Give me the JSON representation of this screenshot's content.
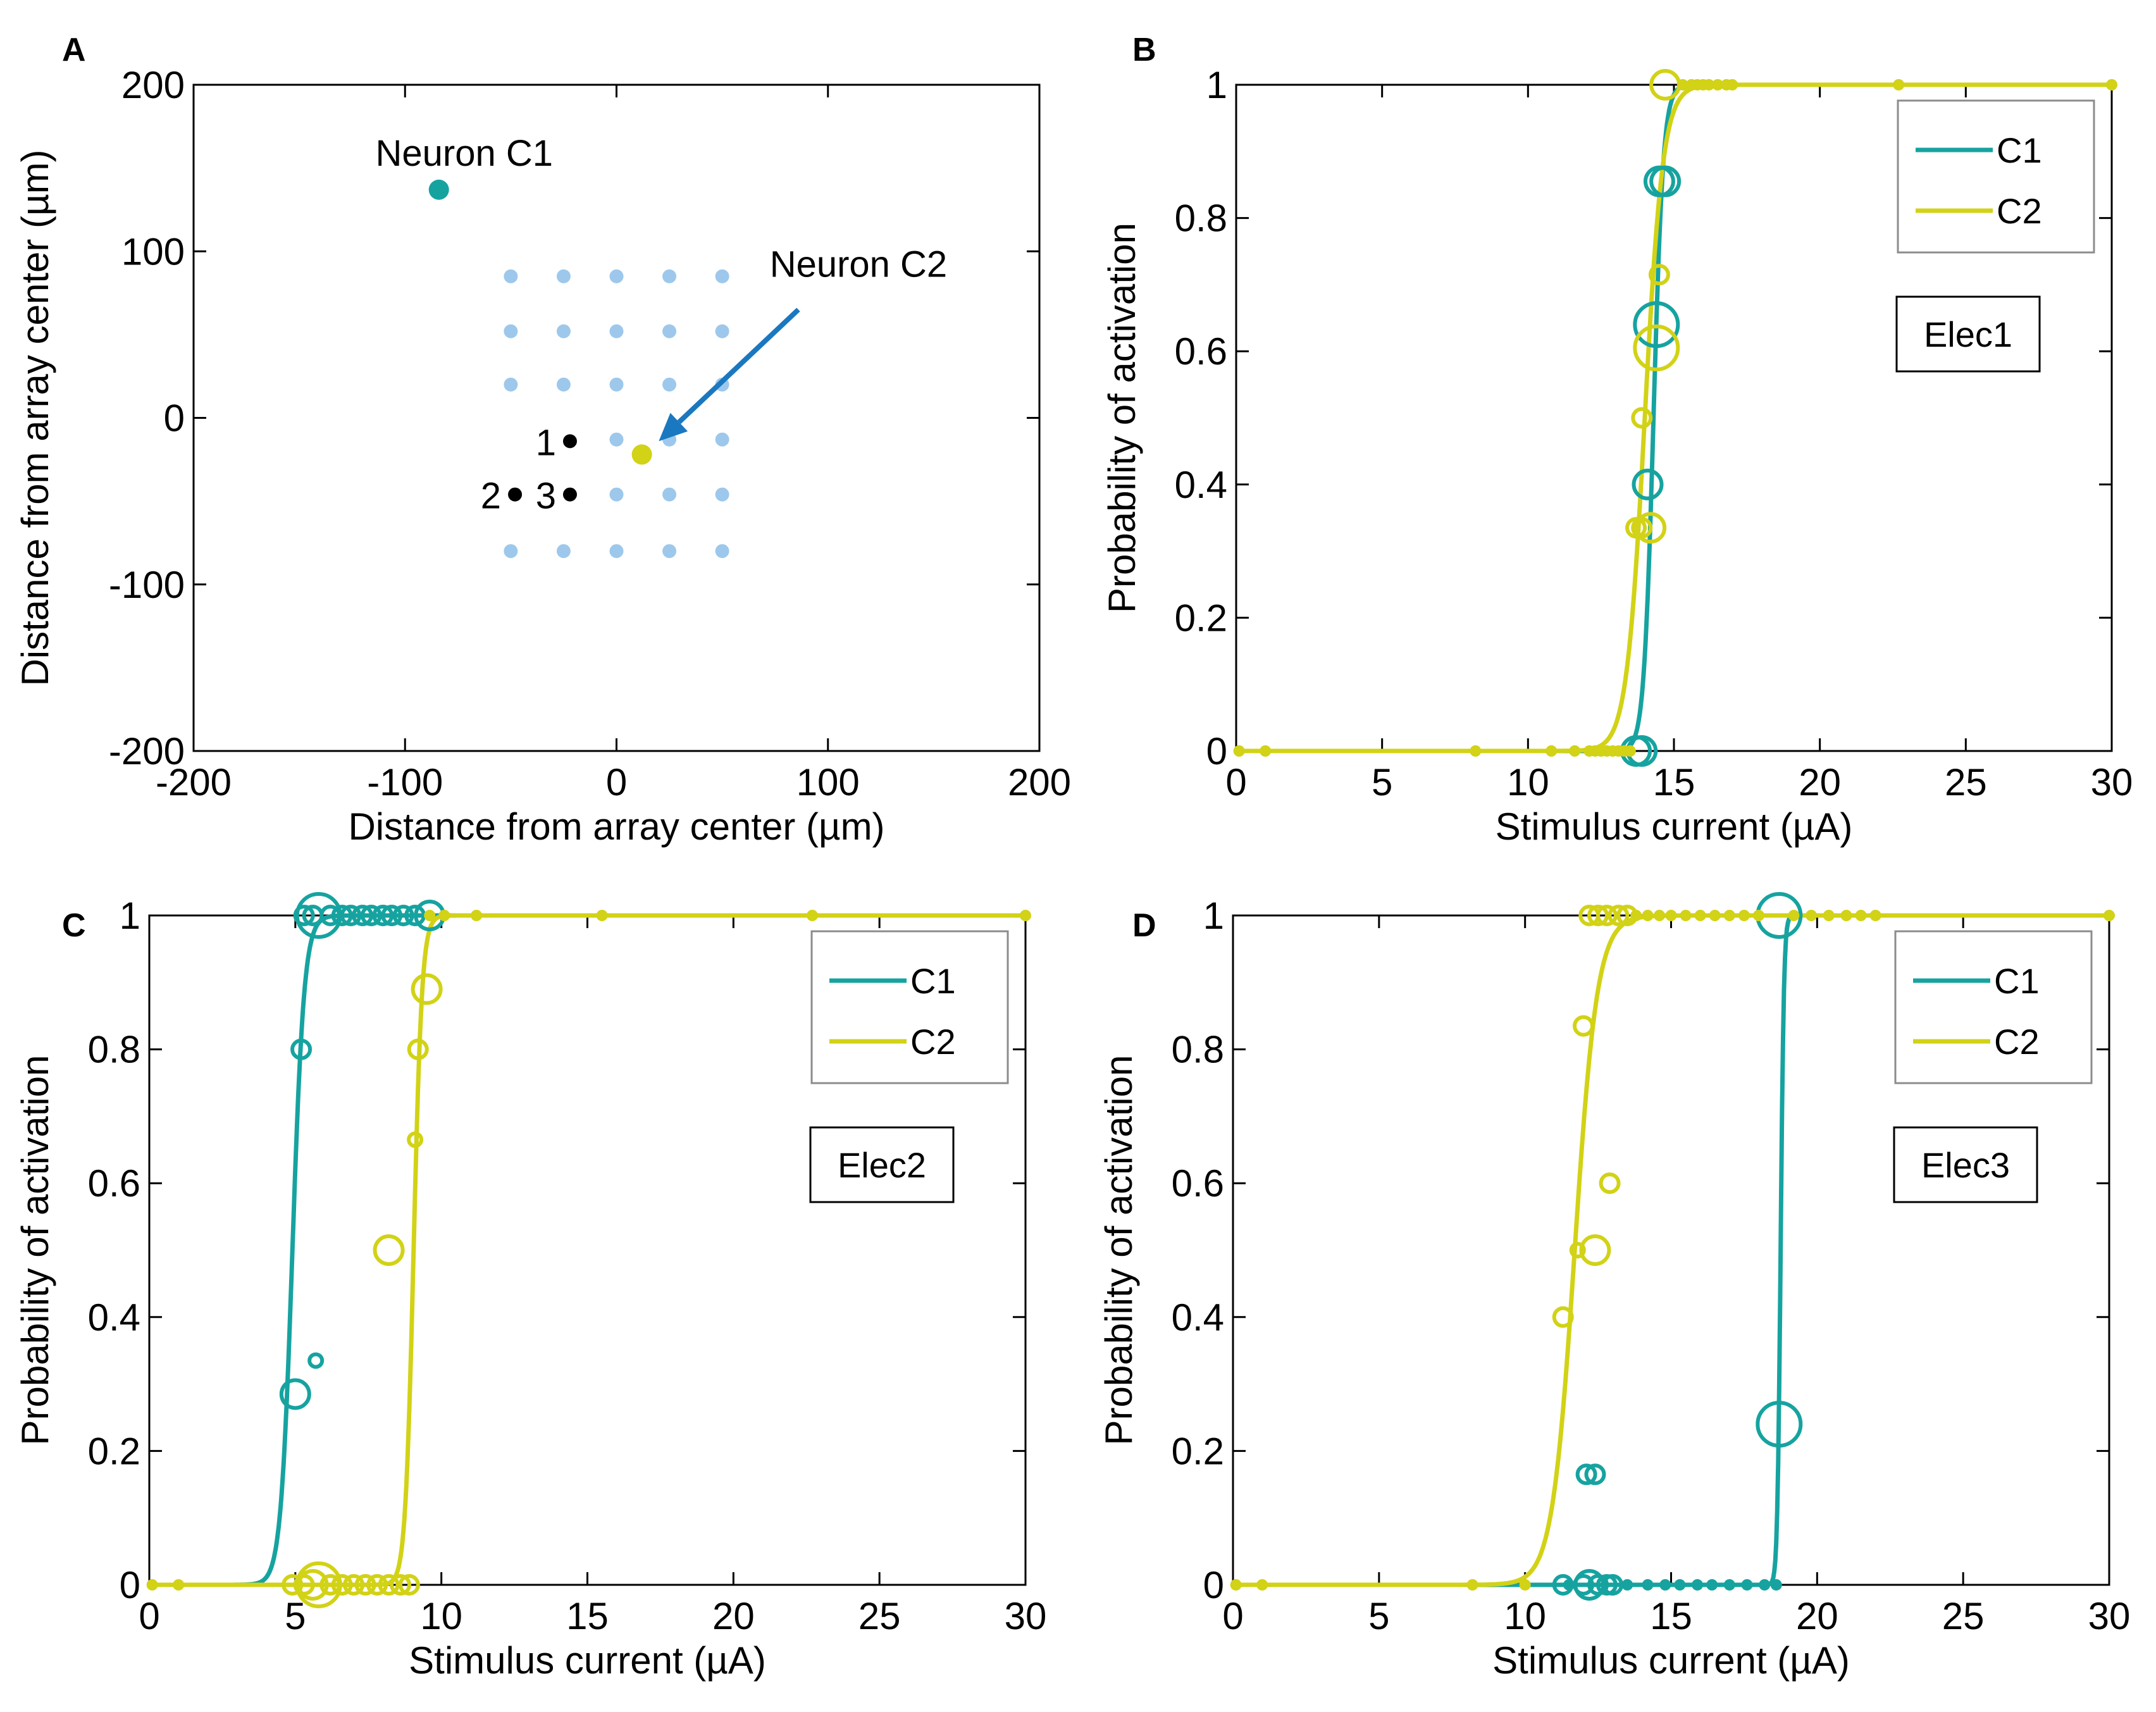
{
  "colors": {
    "C1": "#16a3a0",
    "C2": "#d2d216",
    "grid_dot": "#9dc8ec",
    "arrow": "#1a78c0",
    "black": "#000000"
  },
  "chart_data": [
    {
      "type": "scatter",
      "panel": "A",
      "xlabel": "Distance from array center (µm)",
      "ylabel": "Distance from array center (µm)",
      "xlim": [
        -200,
        200
      ],
      "ylim": [
        -200,
        200
      ],
      "xticks": [
        -200,
        -100,
        0,
        100,
        200
      ],
      "yticks": [
        -200,
        -100,
        0,
        100,
        200
      ],
      "xtick_labels": [
        "-200",
        "-100",
        "0",
        "100",
        "200"
      ],
      "ytick_labels": [
        "-200",
        "-100",
        "0",
        "100",
        "200"
      ],
      "electrode_grid": {
        "xs": [
          -50,
          -25,
          0,
          25,
          50
        ],
        "ys": [
          85,
          52,
          20,
          -13,
          -46,
          -80
        ]
      },
      "electrodes_used": [
        {
          "label": "1",
          "x": -22,
          "y": -14
        },
        {
          "label": "2",
          "x": -48,
          "y": -46
        },
        {
          "label": "3",
          "x": -22,
          "y": -46
        }
      ],
      "neurons": [
        {
          "name": "Neuron C1",
          "label": "Neuron C1",
          "x": -84,
          "y": 137,
          "series": "C1"
        },
        {
          "name": "Neuron C2",
          "label": "Neuron C2",
          "x": 12,
          "y": -22,
          "series": "C2"
        }
      ],
      "arrow": {
        "from": [
          86,
          65
        ],
        "to": [
          20,
          -14
        ]
      }
    },
    {
      "type": "line",
      "panel": "B",
      "xlabel": "Stimulus current (µA)",
      "ylabel": "Probability of activation",
      "xlim": [
        0,
        30
      ],
      "ylim": [
        0,
        1
      ],
      "xticks": [
        0,
        5,
        10,
        15,
        20,
        25,
        30
      ],
      "yticks": [
        0,
        0.2,
        0.4,
        0.6,
        0.8,
        1
      ],
      "xtick_labels": [
        "0",
        "5",
        "10",
        "15",
        "20",
        "25",
        "30"
      ],
      "ytick_labels": [
        "0",
        "0.2",
        "0.4",
        "0.6",
        "0.8",
        "1"
      ],
      "legend": [
        "C1",
        "C2"
      ],
      "legend_position": "top-right",
      "note": "Elec1",
      "series": [
        {
          "name": "C1",
          "fit": {
            "threshold": 14.3,
            "slope": 6.0
          },
          "points": [
            {
              "x": 13.7,
              "y": 0,
              "size": "medium"
            },
            {
              "x": 13.9,
              "y": 0,
              "size": "medium"
            },
            {
              "x": 14.1,
              "y": 0.4,
              "size": "medium"
            },
            {
              "x": 14.4,
              "y": 0.64,
              "size": "large"
            },
            {
              "x": 14.5,
              "y": 0.855,
              "size": "medium"
            },
            {
              "x": 14.7,
              "y": 0.855,
              "size": "medium"
            }
          ]
        },
        {
          "name": "C2",
          "fit": {
            "threshold": 14.0,
            "slope": 3.2
          },
          "points": [
            {
              "x": 0.1,
              "y": 0,
              "size": "dot"
            },
            {
              "x": 1,
              "y": 0,
              "size": "dot"
            },
            {
              "x": 8.2,
              "y": 0,
              "size": "dot"
            },
            {
              "x": 10.8,
              "y": 0,
              "size": "dot"
            },
            {
              "x": 11.6,
              "y": 0,
              "size": "dot"
            },
            {
              "x": 12.1,
              "y": 0,
              "size": "dot"
            },
            {
              "x": 12.3,
              "y": 0,
              "size": "dot"
            },
            {
              "x": 12.5,
              "y": 0,
              "size": "dot"
            },
            {
              "x": 12.7,
              "y": 0,
              "size": "dot"
            },
            {
              "x": 12.9,
              "y": 0,
              "size": "dot"
            },
            {
              "x": 13.1,
              "y": 0,
              "size": "dot"
            },
            {
              "x": 13.3,
              "y": 0,
              "size": "dot"
            },
            {
              "x": 13.5,
              "y": 0,
              "size": "dot"
            },
            {
              "x": 13.7,
              "y": 0.335,
              "size": "small"
            },
            {
              "x": 13.9,
              "y": 0.335,
              "size": "small"
            },
            {
              "x": 14.2,
              "y": 0.335,
              "size": "medium"
            },
            {
              "x": 13.9,
              "y": 0.5,
              "size": "small"
            },
            {
              "x": 14.4,
              "y": 0.605,
              "size": "large"
            },
            {
              "x": 14.5,
              "y": 0.715,
              "size": "small"
            },
            {
              "x": 14.7,
              "y": 1,
              "size": "medium"
            },
            {
              "x": 15.3,
              "y": 1,
              "size": "dot"
            },
            {
              "x": 15.6,
              "y": 1,
              "size": "dot"
            },
            {
              "x": 15.8,
              "y": 1,
              "size": "dot"
            },
            {
              "x": 16.0,
              "y": 1,
              "size": "dot"
            },
            {
              "x": 16.2,
              "y": 1,
              "size": "dot"
            },
            {
              "x": 16.5,
              "y": 1,
              "size": "dot"
            },
            {
              "x": 16.8,
              "y": 1,
              "size": "dot"
            },
            {
              "x": 17.0,
              "y": 1,
              "size": "dot"
            },
            {
              "x": 22.7,
              "y": 1,
              "size": "dot"
            },
            {
              "x": 30,
              "y": 1,
              "size": "dot"
            }
          ]
        }
      ]
    },
    {
      "type": "line",
      "panel": "C",
      "xlabel": "Stimulus current (µA)",
      "ylabel": "Probability of activation",
      "xlim": [
        0,
        30
      ],
      "ylim": [
        0,
        1
      ],
      "xticks": [
        0,
        5,
        10,
        15,
        20,
        25,
        30
      ],
      "yticks": [
        0,
        0.2,
        0.4,
        0.6,
        0.8,
        1
      ],
      "xtick_labels": [
        "0",
        "5",
        "10",
        "15",
        "20",
        "25",
        "30"
      ],
      "ytick_labels": [
        "0",
        "0.2",
        "0.4",
        "0.6",
        "0.8",
        "1"
      ],
      "legend": [
        "C1",
        "C2"
      ],
      "legend_position": "top-right",
      "note": "Elec2",
      "series": [
        {
          "name": "C1",
          "fit": {
            "threshold": 4.9,
            "slope": 5.0
          },
          "points": [
            {
              "x": 5.0,
              "y": 0.285,
              "size": "medium"
            },
            {
              "x": 5.2,
              "y": 0.8,
              "size": "small"
            },
            {
              "x": 5.7,
              "y": 0.335,
              "size": "tiny"
            },
            {
              "x": 5.3,
              "y": 1,
              "size": "small"
            },
            {
              "x": 5.6,
              "y": 1,
              "size": "small"
            },
            {
              "x": 5.8,
              "y": 1,
              "size": "large"
            },
            {
              "x": 6.2,
              "y": 1,
              "size": "small"
            },
            {
              "x": 6.6,
              "y": 1,
              "size": "small"
            },
            {
              "x": 6.9,
              "y": 1,
              "size": "small"
            },
            {
              "x": 7.3,
              "y": 1,
              "size": "small"
            },
            {
              "x": 7.6,
              "y": 1,
              "size": "small"
            },
            {
              "x": 8.0,
              "y": 1,
              "size": "small"
            },
            {
              "x": 8.3,
              "y": 1,
              "size": "small"
            },
            {
              "x": 8.7,
              "y": 1,
              "size": "small"
            },
            {
              "x": 9.1,
              "y": 1,
              "size": "small"
            },
            {
              "x": 9.6,
              "y": 1,
              "size": "medium"
            }
          ]
        },
        {
          "name": "C2",
          "fit": {
            "threshold": 9.05,
            "slope": 7.0
          },
          "points": [
            {
              "x": 0.1,
              "y": 0,
              "size": "dot"
            },
            {
              "x": 1,
              "y": 0,
              "size": "dot"
            },
            {
              "x": 4.9,
              "y": 0,
              "size": "small"
            },
            {
              "x": 5.3,
              "y": 0,
              "size": "small"
            },
            {
              "x": 5.6,
              "y": 0,
              "size": "medium"
            },
            {
              "x": 5.8,
              "y": 0,
              "size": "large"
            },
            {
              "x": 6.2,
              "y": 0,
              "size": "small"
            },
            {
              "x": 6.6,
              "y": 0,
              "size": "small"
            },
            {
              "x": 7.0,
              "y": 0,
              "size": "small"
            },
            {
              "x": 7.4,
              "y": 0,
              "size": "small"
            },
            {
              "x": 7.8,
              "y": 0,
              "size": "small"
            },
            {
              "x": 8.2,
              "y": 0,
              "size": "small"
            },
            {
              "x": 8.6,
              "y": 0,
              "size": "small"
            },
            {
              "x": 8.9,
              "y": 0,
              "size": "small"
            },
            {
              "x": 8.2,
              "y": 0.5,
              "size": "medium"
            },
            {
              "x": 9.1,
              "y": 0.665,
              "size": "tiny"
            },
            {
              "x": 9.2,
              "y": 0.8,
              "size": "small"
            },
            {
              "x": 9.5,
              "y": 0.89,
              "size": "medium"
            },
            {
              "x": 9.6,
              "y": 1,
              "size": "dot"
            },
            {
              "x": 10.1,
              "y": 1,
              "size": "dot"
            },
            {
              "x": 11.2,
              "y": 1,
              "size": "dot"
            },
            {
              "x": 15.5,
              "y": 1,
              "size": "dot"
            },
            {
              "x": 22.7,
              "y": 1,
              "size": "dot"
            },
            {
              "x": 30,
              "y": 1,
              "size": "dot"
            }
          ]
        }
      ]
    },
    {
      "type": "line",
      "panel": "D",
      "xlabel": "Stimulus current (µA)",
      "ylabel": "Probability of activation",
      "xlim": [
        0,
        30
      ],
      "ylim": [
        0,
        1
      ],
      "xticks": [
        0,
        5,
        10,
        15,
        20,
        25,
        30
      ],
      "yticks": [
        0,
        0.2,
        0.4,
        0.6,
        0.8,
        1
      ],
      "xtick_labels": [
        "0",
        "5",
        "10",
        "15",
        "20",
        "25",
        "30"
      ],
      "ytick_labels": [
        "0",
        "0.2",
        "0.4",
        "0.6",
        "0.8",
        "1"
      ],
      "legend": [
        "C1",
        "C2"
      ],
      "legend_position": "top-right",
      "note": "Elec3",
      "series": [
        {
          "name": "C1",
          "fit": {
            "threshold": 18.75,
            "slope": 18.0
          },
          "points": [
            {
              "x": 11.3,
              "y": 0,
              "size": "small"
            },
            {
              "x": 11.5,
              "y": 0,
              "size": "dot"
            },
            {
              "x": 12.0,
              "y": 0,
              "size": "small"
            },
            {
              "x": 12.2,
              "y": 0,
              "size": "medium"
            },
            {
              "x": 12.5,
              "y": 0,
              "size": "small"
            },
            {
              "x": 12.8,
              "y": 0,
              "size": "small"
            },
            {
              "x": 13.0,
              "y": 0,
              "size": "small"
            },
            {
              "x": 13.5,
              "y": 0,
              "size": "dot"
            },
            {
              "x": 14.2,
              "y": 0,
              "size": "dot"
            },
            {
              "x": 14.8,
              "y": 0,
              "size": "dot"
            },
            {
              "x": 15.3,
              "y": 0,
              "size": "dot"
            },
            {
              "x": 15.9,
              "y": 0,
              "size": "dot"
            },
            {
              "x": 16.4,
              "y": 0,
              "size": "dot"
            },
            {
              "x": 17.0,
              "y": 0,
              "size": "dot"
            },
            {
              "x": 17.6,
              "y": 0,
              "size": "dot"
            },
            {
              "x": 18.2,
              "y": 0,
              "size": "dot"
            },
            {
              "x": 18.6,
              "y": 0,
              "size": "dot"
            },
            {
              "x": 12.1,
              "y": 0.165,
              "size": "small"
            },
            {
              "x": 12.4,
              "y": 0.165,
              "size": "small"
            },
            {
              "x": 18.7,
              "y": 0.24,
              "size": "large"
            },
            {
              "x": 18.7,
              "y": 1,
              "size": "large"
            }
          ]
        },
        {
          "name": "C2",
          "fit": {
            "threshold": 11.7,
            "slope": 2.6
          },
          "points": [
            {
              "x": 0.1,
              "y": 0,
              "size": "dot"
            },
            {
              "x": 1,
              "y": 0,
              "size": "dot"
            },
            {
              "x": 8.2,
              "y": 0,
              "size": "dot"
            },
            {
              "x": 10.0,
              "y": 0,
              "size": "dot"
            },
            {
              "x": 11.3,
              "y": 0.4,
              "size": "small"
            },
            {
              "x": 11.8,
              "y": 0.5,
              "size": "tiny"
            },
            {
              "x": 12.4,
              "y": 0.5,
              "size": "medium"
            },
            {
              "x": 12.9,
              "y": 0.6,
              "size": "small"
            },
            {
              "x": 12.0,
              "y": 0.835,
              "size": "small"
            },
            {
              "x": 12.2,
              "y": 1,
              "size": "small"
            },
            {
              "x": 12.5,
              "y": 1,
              "size": "small"
            },
            {
              "x": 12.8,
              "y": 1,
              "size": "small"
            },
            {
              "x": 13.2,
              "y": 1,
              "size": "small"
            },
            {
              "x": 13.5,
              "y": 1,
              "size": "small"
            },
            {
              "x": 13.8,
              "y": 1,
              "size": "dot"
            },
            {
              "x": 14.2,
              "y": 1,
              "size": "dot"
            },
            {
              "x": 14.6,
              "y": 1,
              "size": "dot"
            },
            {
              "x": 15.0,
              "y": 1,
              "size": "dot"
            },
            {
              "x": 15.5,
              "y": 1,
              "size": "dot"
            },
            {
              "x": 16.0,
              "y": 1,
              "size": "dot"
            },
            {
              "x": 16.5,
              "y": 1,
              "size": "dot"
            },
            {
              "x": 17.0,
              "y": 1,
              "size": "dot"
            },
            {
              "x": 17.5,
              "y": 1,
              "size": "dot"
            },
            {
              "x": 18.0,
              "y": 1,
              "size": "dot"
            },
            {
              "x": 19.2,
              "y": 1,
              "size": "dot"
            },
            {
              "x": 19.8,
              "y": 1,
              "size": "dot"
            },
            {
              "x": 20.4,
              "y": 1,
              "size": "dot"
            },
            {
              "x": 21.0,
              "y": 1,
              "size": "dot"
            },
            {
              "x": 21.5,
              "y": 1,
              "size": "dot"
            },
            {
              "x": 22.0,
              "y": 1,
              "size": "dot"
            },
            {
              "x": 30,
              "y": 1,
              "size": "dot"
            }
          ]
        }
      ]
    }
  ]
}
